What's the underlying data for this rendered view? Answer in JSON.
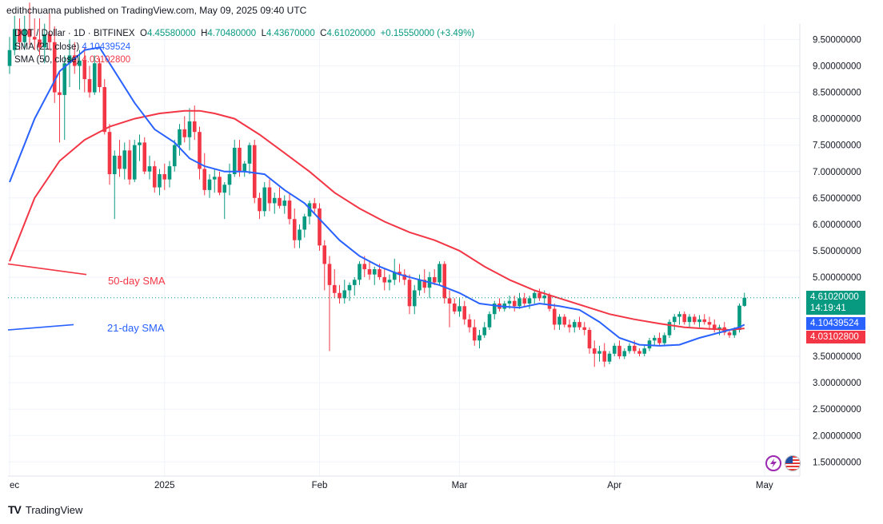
{
  "header": {
    "text": "edithchuama published on TradingView.com, May 09, 2025 09:40 UTC"
  },
  "legend": {
    "symbol": "DOT / Dollar · 1D · BITFINEX",
    "o_label": "O",
    "o_val": "4.45580000",
    "h_label": "H",
    "h_val": "4.70480000",
    "l_label": "L",
    "l_val": "4.43670000",
    "c_label": "C",
    "c_val": "4.61020000",
    "change": "+0.15550000 (+3.49%)",
    "sma21_label": "SMA (21, close)",
    "sma21_val": "4.10439524",
    "sma50_label": "SMA (50, close)",
    "sma50_val": "4.03102800"
  },
  "annotations": {
    "sma50": "50-day SMA",
    "sma21": "21-day SMA"
  },
  "price_tags": {
    "last": "4.61020000",
    "countdown": "14:19:41",
    "sma21": "4.10439524",
    "sma50": "4.03102800"
  },
  "footer": {
    "brand": "TradingView",
    "logo": "TV"
  },
  "colors": {
    "up": "#089981",
    "down": "#f23645",
    "sma21": "#2962ff",
    "sma50": "#f23645"
  },
  "icons": [
    "lightning-icon",
    "us-flag-icon"
  ],
  "chart_data": {
    "type": "candlestick",
    "y_ticks": [
      "9.50000000",
      "9.00000000",
      "8.50000000",
      "8.00000000",
      "7.50000000",
      "7.00000000",
      "6.50000000",
      "6.00000000",
      "5.50000000",
      "5.00000000",
      "3.50000000",
      "3.00000000",
      "2.50000000",
      "2.00000000",
      "1.50000000"
    ],
    "y_tick_values": [
      9.5,
      9.0,
      8.5,
      8.0,
      7.5,
      7.0,
      6.5,
      6.0,
      5.5,
      5.0,
      3.5,
      3.0,
      2.5,
      2.0,
      1.5
    ],
    "x_ticks": [
      "ec",
      "2025",
      "Feb",
      "Mar",
      "Apr",
      "May"
    ],
    "x_tick_days": [
      0,
      31,
      62,
      90,
      121,
      151
    ],
    "ylim": [
      1.2,
      9.9
    ],
    "candles": [
      [
        0,
        9.0,
        9.55,
        8.85,
        9.3
      ],
      [
        1,
        9.3,
        9.95,
        9.2,
        9.7
      ],
      [
        2,
        9.7,
        9.9,
        9.3,
        9.45
      ],
      [
        3,
        9.45,
        9.95,
        9.3,
        9.7
      ],
      [
        4,
        9.7,
        10.2,
        9.4,
        9.55
      ],
      [
        5,
        9.55,
        9.9,
        9.3,
        9.5
      ],
      [
        6,
        9.5,
        9.9,
        9.2,
        9.35
      ],
      [
        7,
        9.35,
        9.8,
        9.05,
        9.6
      ],
      [
        8,
        9.6,
        10.0,
        9.3,
        9.45
      ],
      [
        9,
        9.45,
        9.75,
        8.3,
        8.5
      ],
      [
        10,
        8.5,
        8.9,
        7.55,
        8.45
      ],
      [
        11,
        8.45,
        9.2,
        7.6,
        9.05
      ],
      [
        12,
        9.05,
        9.5,
        8.6,
        9.2
      ],
      [
        13,
        9.2,
        9.45,
        8.85,
        9.0
      ],
      [
        14,
        9.0,
        9.3,
        8.55,
        9.1
      ],
      [
        15,
        9.1,
        9.35,
        8.5,
        8.75
      ],
      [
        16,
        8.75,
        9.0,
        8.4,
        8.5
      ],
      [
        17,
        8.5,
        9.2,
        8.45,
        9.05
      ],
      [
        18,
        9.05,
        9.15,
        8.5,
        8.6
      ],
      [
        19,
        8.6,
        8.75,
        7.7,
        7.75
      ],
      [
        20,
        7.75,
        7.9,
        6.75,
        6.95
      ],
      [
        21,
        6.95,
        7.4,
        6.1,
        7.3
      ],
      [
        22,
        7.3,
        7.6,
        6.9,
        7.05
      ],
      [
        23,
        7.05,
        7.55,
        6.85,
        7.4
      ],
      [
        24,
        7.4,
        7.6,
        6.75,
        6.85
      ],
      [
        25,
        6.85,
        7.6,
        6.8,
        7.5
      ],
      [
        26,
        7.5,
        7.7,
        7.2,
        7.55
      ],
      [
        27,
        7.55,
        7.65,
        6.95,
        7.0
      ],
      [
        28,
        7.0,
        7.3,
        6.85,
        7.1
      ],
      [
        29,
        7.1,
        7.2,
        6.6,
        6.7
      ],
      [
        30,
        6.7,
        7.05,
        6.55,
        6.95
      ],
      [
        31,
        6.95,
        7.15,
        6.65,
        6.85
      ],
      [
        32,
        6.85,
        7.2,
        6.7,
        7.1
      ],
      [
        33,
        7.1,
        7.6,
        7.0,
        7.5
      ],
      [
        34,
        7.5,
        7.9,
        7.3,
        7.8
      ],
      [
        35,
        7.8,
        8.05,
        7.55,
        7.65
      ],
      [
        36,
        7.65,
        8.2,
        7.4,
        7.95
      ],
      [
        37,
        7.95,
        8.25,
        7.6,
        7.75
      ],
      [
        38,
        7.75,
        7.85,
        6.85,
        7.05
      ],
      [
        39,
        7.05,
        7.35,
        6.55,
        6.65
      ],
      [
        40,
        6.65,
        6.95,
        6.5,
        6.85
      ],
      [
        41,
        6.85,
        7.05,
        6.6,
        6.9
      ],
      [
        42,
        6.9,
        7.0,
        6.55,
        6.6
      ],
      [
        43,
        6.6,
        6.8,
        6.1,
        6.75
      ],
      [
        44,
        6.75,
        7.15,
        6.55,
        6.95
      ],
      [
        45,
        6.95,
        7.6,
        6.9,
        7.45
      ],
      [
        46,
        7.45,
        7.6,
        6.9,
        7.0
      ],
      [
        47,
        7.0,
        7.2,
        6.9,
        7.15
      ],
      [
        48,
        7.15,
        7.55,
        6.95,
        7.5
      ],
      [
        49,
        7.5,
        7.6,
        6.4,
        6.5
      ],
      [
        50,
        6.5,
        6.6,
        6.1,
        6.25
      ],
      [
        51,
        6.25,
        6.8,
        6.15,
        6.7
      ],
      [
        52,
        6.7,
        6.85,
        6.25,
        6.4
      ],
      [
        53,
        6.4,
        6.6,
        6.2,
        6.5
      ],
      [
        54,
        6.5,
        6.7,
        6.3,
        6.35
      ],
      [
        55,
        6.35,
        6.55,
        6.2,
        6.45
      ],
      [
        56,
        6.45,
        6.6,
        6.0,
        6.1
      ],
      [
        57,
        6.1,
        6.3,
        5.55,
        5.7
      ],
      [
        58,
        5.7,
        6.0,
        5.55,
        5.9
      ],
      [
        59,
        5.9,
        6.2,
        5.75,
        6.15
      ],
      [
        60,
        6.15,
        6.45,
        6.0,
        6.4
      ],
      [
        61,
        6.4,
        6.5,
        6.2,
        6.3
      ],
      [
        62,
        6.3,
        6.4,
        5.5,
        5.6
      ],
      [
        63,
        5.6,
        5.7,
        4.75,
        5.25
      ],
      [
        64,
        5.25,
        5.4,
        3.6,
        4.85
      ],
      [
        65,
        4.85,
        5.15,
        4.6,
        4.7
      ],
      [
        66,
        4.7,
        4.85,
        4.5,
        4.6
      ],
      [
        67,
        4.6,
        4.95,
        4.5,
        4.75
      ],
      [
        68,
        4.75,
        4.9,
        4.55,
        4.85
      ],
      [
        69,
        4.85,
        5.0,
        4.65,
        4.95
      ],
      [
        70,
        4.95,
        5.3,
        4.85,
        5.25
      ],
      [
        71,
        5.25,
        5.4,
        5.0,
        5.15
      ],
      [
        72,
        5.15,
        5.3,
        4.95,
        5.05
      ],
      [
        73,
        5.05,
        5.2,
        4.85,
        5.15
      ],
      [
        74,
        5.15,
        5.25,
        4.95,
        5.0
      ],
      [
        75,
        5.0,
        5.15,
        4.75,
        4.9
      ],
      [
        76,
        4.9,
        5.05,
        4.75,
        4.95
      ],
      [
        77,
        4.95,
        5.35,
        4.85,
        5.1
      ],
      [
        78,
        5.1,
        5.25,
        4.9,
        5.05
      ],
      [
        79,
        5.05,
        5.15,
        4.85,
        4.95
      ],
      [
        80,
        4.95,
        5.05,
        4.3,
        4.45
      ],
      [
        81,
        4.45,
        4.85,
        4.3,
        4.75
      ],
      [
        82,
        4.75,
        5.05,
        4.65,
        4.95
      ],
      [
        83,
        4.95,
        5.15,
        4.7,
        4.8
      ],
      [
        84,
        4.8,
        5.1,
        4.6,
        5.0
      ],
      [
        85,
        5.0,
        5.15,
        4.85,
        4.9
      ],
      [
        86,
        4.9,
        5.3,
        4.85,
        5.25
      ],
      [
        87,
        5.25,
        5.3,
        4.5,
        4.6
      ],
      [
        88,
        4.6,
        4.75,
        4.05,
        4.5
      ],
      [
        89,
        4.5,
        4.6,
        4.3,
        4.35
      ],
      [
        90,
        4.35,
        4.6,
        4.25,
        4.45
      ],
      [
        91,
        4.45,
        4.55,
        4.1,
        4.2
      ],
      [
        92,
        4.2,
        4.3,
        3.95,
        4.05
      ],
      [
        93,
        4.05,
        4.2,
        3.7,
        3.8
      ],
      [
        94,
        3.8,
        4.0,
        3.65,
        3.9
      ],
      [
        95,
        3.9,
        4.15,
        3.85,
        4.05
      ],
      [
        96,
        4.05,
        4.35,
        4.0,
        4.3
      ],
      [
        97,
        4.3,
        4.55,
        4.2,
        4.5
      ],
      [
        98,
        4.5,
        4.6,
        4.35,
        4.4
      ],
      [
        99,
        4.4,
        4.55,
        4.35,
        4.5
      ],
      [
        100,
        4.5,
        4.65,
        4.4,
        4.55
      ],
      [
        101,
        4.55,
        4.65,
        4.35,
        4.45
      ],
      [
        102,
        4.45,
        4.7,
        4.4,
        4.6
      ],
      [
        103,
        4.6,
        4.7,
        4.45,
        4.5
      ],
      [
        104,
        4.5,
        4.65,
        4.4,
        4.6
      ],
      [
        105,
        4.6,
        4.75,
        4.5,
        4.7
      ],
      [
        106,
        4.7,
        4.78,
        4.55,
        4.6
      ],
      [
        107,
        4.6,
        4.75,
        4.5,
        4.65
      ],
      [
        108,
        4.65,
        4.7,
        4.35,
        4.4
      ],
      [
        109,
        4.4,
        4.5,
        4.0,
        4.1
      ],
      [
        110,
        4.1,
        4.3,
        4.0,
        4.25
      ],
      [
        111,
        4.25,
        4.3,
        4.05,
        4.1
      ],
      [
        112,
        4.1,
        4.2,
        3.95,
        4.05
      ],
      [
        113,
        4.05,
        4.2,
        3.95,
        4.15
      ],
      [
        114,
        4.15,
        4.25,
        4.0,
        4.05
      ],
      [
        115,
        4.05,
        4.15,
        3.9,
        4.0
      ],
      [
        116,
        4.0,
        4.05,
        3.55,
        3.65
      ],
      [
        117,
        3.65,
        3.8,
        3.3,
        3.55
      ],
      [
        118,
        3.55,
        3.7,
        3.4,
        3.6
      ],
      [
        119,
        3.6,
        3.75,
        3.3,
        3.4
      ],
      [
        120,
        3.4,
        3.6,
        3.35,
        3.55
      ],
      [
        121,
        3.55,
        3.75,
        3.5,
        3.7
      ],
      [
        122,
        3.7,
        3.8,
        3.45,
        3.5
      ],
      [
        123,
        3.5,
        3.65,
        3.45,
        3.6
      ],
      [
        124,
        3.6,
        3.75,
        3.55,
        3.7
      ],
      [
        125,
        3.7,
        3.8,
        3.55,
        3.6
      ],
      [
        126,
        3.6,
        3.65,
        3.5,
        3.55
      ],
      [
        127,
        3.55,
        3.7,
        3.5,
        3.65
      ],
      [
        128,
        3.65,
        3.85,
        3.6,
        3.8
      ],
      [
        129,
        3.8,
        3.9,
        3.7,
        3.85
      ],
      [
        130,
        3.85,
        3.95,
        3.7,
        3.75
      ],
      [
        131,
        3.75,
        3.95,
        3.7,
        3.9
      ],
      [
        132,
        3.9,
        4.2,
        3.85,
        4.15
      ],
      [
        133,
        4.15,
        4.3,
        4.0,
        4.25
      ],
      [
        134,
        4.25,
        4.35,
        4.1,
        4.3
      ],
      [
        135,
        4.3,
        4.35,
        4.1,
        4.15
      ],
      [
        136,
        4.15,
        4.3,
        4.05,
        4.25
      ],
      [
        137,
        4.25,
        4.3,
        4.1,
        4.15
      ],
      [
        138,
        4.15,
        4.28,
        4.05,
        4.2
      ],
      [
        139,
        4.2,
        4.3,
        4.1,
        4.15
      ],
      [
        140,
        4.15,
        4.25,
        4.0,
        4.1
      ],
      [
        141,
        4.1,
        4.2,
        3.95,
        4.0
      ],
      [
        142,
        4.0,
        4.1,
        3.9,
        4.05
      ],
      [
        143,
        4.05,
        4.15,
        3.9,
        3.95
      ],
      [
        144,
        3.95,
        4.0,
        3.85,
        3.9
      ],
      [
        145,
        3.9,
        4.05,
        3.85,
        4.0
      ],
      [
        146,
        4.0,
        4.5,
        3.95,
        4.46
      ],
      [
        147,
        4.4558,
        4.7048,
        4.4367,
        4.6102
      ]
    ],
    "sma21": [
      [
        0,
        6.8
      ],
      [
        5,
        8.0
      ],
      [
        10,
        8.9
      ],
      [
        15,
        9.3
      ],
      [
        18,
        9.35
      ],
      [
        21,
        8.9
      ],
      [
        25,
        8.3
      ],
      [
        29,
        7.8
      ],
      [
        33,
        7.55
      ],
      [
        36,
        7.25
      ],
      [
        39,
        7.1
      ],
      [
        43,
        7.0
      ],
      [
        47,
        7.0
      ],
      [
        51,
        6.95
      ],
      [
        55,
        6.65
      ],
      [
        59,
        6.4
      ],
      [
        62,
        6.1
      ],
      [
        66,
        5.7
      ],
      [
        70,
        5.4
      ],
      [
        74,
        5.2
      ],
      [
        78,
        5.05
      ],
      [
        82,
        4.95
      ],
      [
        86,
        4.85
      ],
      [
        90,
        4.7
      ],
      [
        94,
        4.5
      ],
      [
        98,
        4.45
      ],
      [
        102,
        4.42
      ],
      [
        106,
        4.5
      ],
      [
        110,
        4.45
      ],
      [
        114,
        4.38
      ],
      [
        118,
        4.15
      ],
      [
        122,
        3.85
      ],
      [
        126,
        3.72
      ],
      [
        130,
        3.7
      ],
      [
        134,
        3.72
      ],
      [
        138,
        3.85
      ],
      [
        142,
        3.95
      ],
      [
        146,
        4.05
      ],
      [
        147,
        4.1
      ]
    ],
    "sma50": [
      [
        0,
        5.3
      ],
      [
        5,
        6.5
      ],
      [
        10,
        7.2
      ],
      [
        15,
        7.6
      ],
      [
        20,
        7.85
      ],
      [
        25,
        8.0
      ],
      [
        30,
        8.1
      ],
      [
        35,
        8.15
      ],
      [
        38,
        8.15
      ],
      [
        41,
        8.1
      ],
      [
        45,
        8.0
      ],
      [
        50,
        7.7
      ],
      [
        55,
        7.35
      ],
      [
        60,
        7.0
      ],
      [
        65,
        6.6
      ],
      [
        70,
        6.3
      ],
      [
        75,
        6.05
      ],
      [
        80,
        5.85
      ],
      [
        85,
        5.7
      ],
      [
        90,
        5.5
      ],
      [
        95,
        5.2
      ],
      [
        100,
        4.95
      ],
      [
        105,
        4.75
      ],
      [
        110,
        4.6
      ],
      [
        115,
        4.45
      ],
      [
        120,
        4.3
      ],
      [
        125,
        4.2
      ],
      [
        130,
        4.12
      ],
      [
        135,
        4.05
      ],
      [
        140,
        4.02
      ],
      [
        144,
        4.0
      ],
      [
        147,
        4.03
      ]
    ],
    "trendlines": {
      "sma50_end": [
        5.25,
        5.05
      ],
      "sma21_end": [
        4.0,
        4.1
      ]
    }
  }
}
